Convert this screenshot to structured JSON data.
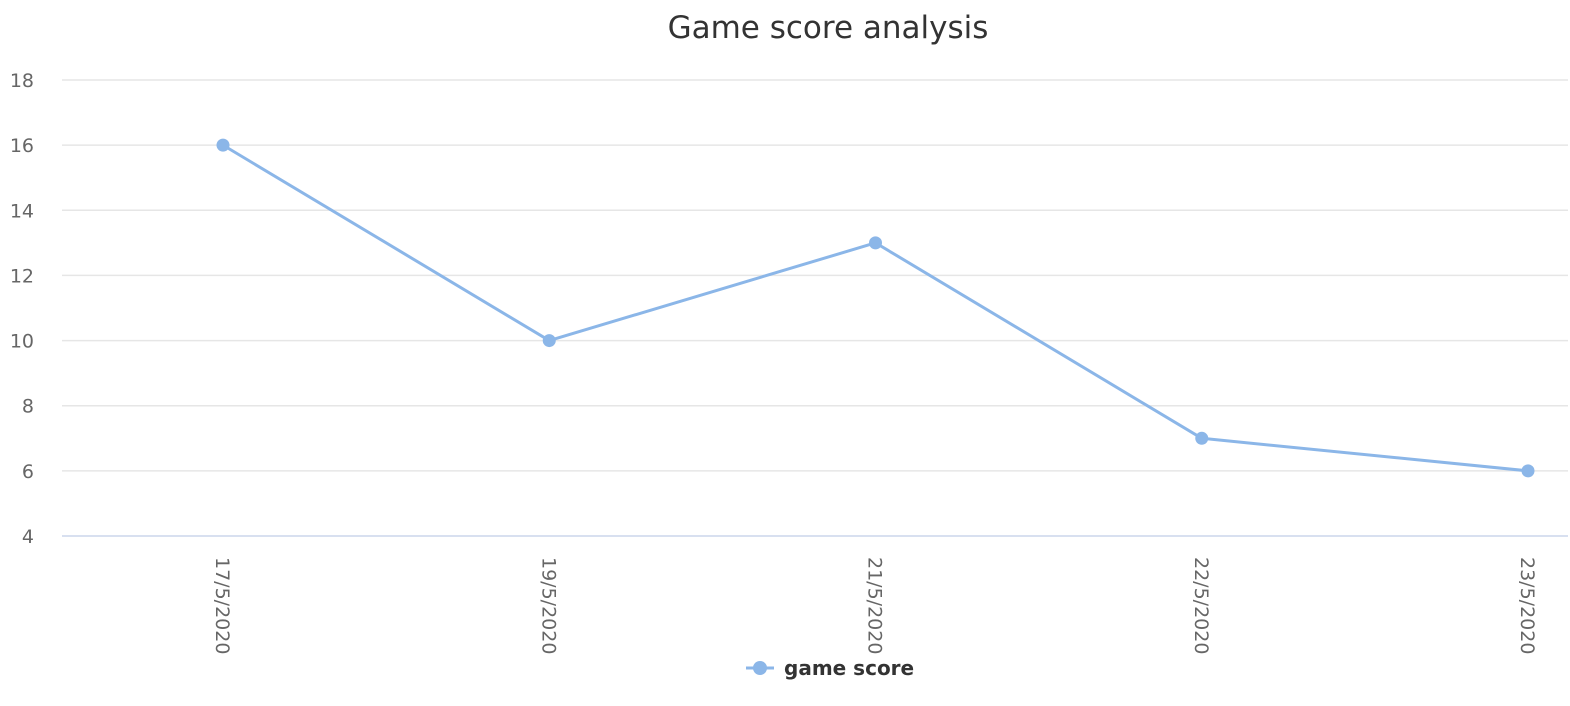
{
  "chart_data": {
    "type": "line",
    "title": "Game score analysis",
    "xlabel": "",
    "ylabel": "",
    "categories": [
      "17/5/2020",
      "19/5/2020",
      "21/5/2020",
      "22/5/2020",
      "23/5/2020"
    ],
    "series": [
      {
        "name": "game score",
        "color": "#8bb6e8",
        "values": [
          16,
          10,
          13,
          7,
          6
        ]
      }
    ],
    "ylim": [
      4,
      18
    ],
    "yticks": [
      4,
      6,
      8,
      10,
      12,
      14,
      16,
      18
    ],
    "grid": true,
    "legend": "bottom-center",
    "x_label_rotation": "vertical"
  }
}
